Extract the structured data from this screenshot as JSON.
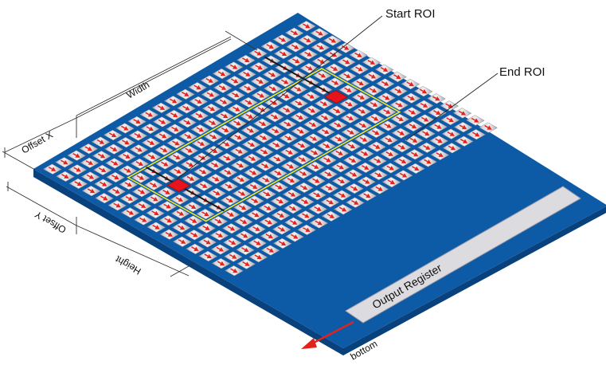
{
  "diagram": {
    "labels": {
      "start_roi": "Start ROI",
      "end_roi": "End ROI",
      "width": "Width",
      "offset_x": "Offset X",
      "offset_y": "Offset Y",
      "height": "Height",
      "output_register": "Output Register",
      "bottom": "bottom"
    },
    "sensor": {
      "rows": 15,
      "columns": 22,
      "roi_rows": [
        4,
        10
      ],
      "roi_columns": [
        3,
        19
      ],
      "start_roi_cell": [
        6,
        4
      ],
      "end_roi_cell": [
        6,
        17
      ],
      "shift_direction": "toward output register"
    },
    "colors": {
      "board": "#0d5aa7",
      "board_edge": "#08417c",
      "pixel": "#c9c9cf",
      "pixel_highlight": "#efeff3",
      "pixel_shadow": "#8e8e96",
      "arrow": "#e3231b",
      "roi_outline": "#f2ea2a",
      "roi_marker": "#e8141c",
      "register": "#dcdce0"
    }
  }
}
